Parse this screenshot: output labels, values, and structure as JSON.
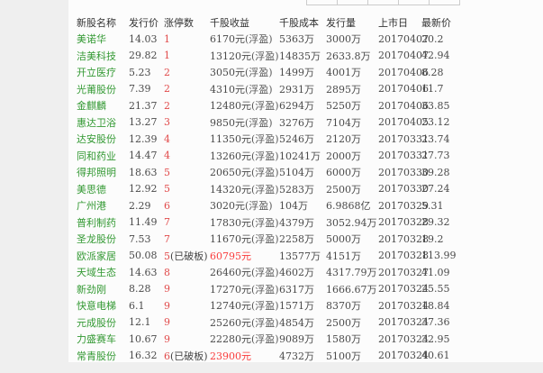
{
  "colors": {
    "stock_name_green": "#339933",
    "limit_up_red": "#e14b4b",
    "broken_board_value_red": "#fa3c3c",
    "text_dark": "#444444",
    "panel_bg": "#fcfcfc",
    "page_bg": "#efefef"
  },
  "table": {
    "columns": [
      {
        "key": "name",
        "label": "新股名称"
      },
      {
        "key": "issue_price",
        "label": "发行价"
      },
      {
        "key": "limit_up",
        "label": "涨停数"
      },
      {
        "key": "income",
        "label": "千股收益"
      },
      {
        "key": "cost",
        "label": "千股成本"
      },
      {
        "key": "volume",
        "label": "发行量"
      },
      {
        "key": "list_date",
        "label": "上市日"
      },
      {
        "key": "latest",
        "label": "最新价"
      }
    ],
    "rows": [
      {
        "name": "美诺华",
        "issue_price": "14.03",
        "limit_up": "1",
        "limit_up_note": "",
        "income": "6170元",
        "income_note": "(浮盈)",
        "income_red": false,
        "cost": "5363万",
        "volume": "3000万",
        "list_date": "20170407",
        "latest": "20.2"
      },
      {
        "name": "洁美科技",
        "issue_price": "29.82",
        "limit_up": "1",
        "limit_up_note": "",
        "income": "13120元",
        "income_note": "(浮盈)",
        "income_red": false,
        "cost": "14835万",
        "volume": "2633.8万",
        "list_date": "20170407",
        "latest": "42.94"
      },
      {
        "name": "开立医疗",
        "issue_price": "5.23",
        "limit_up": "2",
        "limit_up_note": "",
        "income": "3050元",
        "income_note": "(浮盈)",
        "income_red": false,
        "cost": "1499万",
        "volume": "4001万",
        "list_date": "20170406",
        "latest": "8.28"
      },
      {
        "name": "光莆股份",
        "issue_price": "7.39",
        "limit_up": "2",
        "limit_up_note": "",
        "income": "4310元",
        "income_note": "(浮盈)",
        "income_red": false,
        "cost": "2931万",
        "volume": "2895万",
        "list_date": "20170406",
        "latest": "11.7"
      },
      {
        "name": "金麒麟",
        "issue_price": "21.37",
        "limit_up": "2",
        "limit_up_note": "",
        "income": "12480元",
        "income_note": "(浮盈)",
        "income_red": false,
        "cost": "6294万",
        "volume": "5250万",
        "list_date": "20170406",
        "latest": "33.85"
      },
      {
        "name": "惠达卫浴",
        "issue_price": "13.27",
        "limit_up": "3",
        "limit_up_note": "",
        "income": "9850元",
        "income_note": "(浮盈)",
        "income_red": false,
        "cost": "3276万",
        "volume": "7104万",
        "list_date": "20170405",
        "latest": "23.12"
      },
      {
        "name": "达安股份",
        "issue_price": "12.39",
        "limit_up": "4",
        "limit_up_note": "",
        "income": "11350元",
        "income_note": "(浮盈)",
        "income_red": false,
        "cost": "5246万",
        "volume": "2120万",
        "list_date": "20170331",
        "latest": "23.74"
      },
      {
        "name": "同和药业",
        "issue_price": "14.47",
        "limit_up": "4",
        "limit_up_note": "",
        "income": "13260元",
        "income_note": "(浮盈)",
        "income_red": false,
        "cost": "10241万",
        "volume": "2000万",
        "list_date": "20170331",
        "latest": "27.73"
      },
      {
        "name": "得邦照明",
        "issue_price": "18.63",
        "limit_up": "5",
        "limit_up_note": "",
        "income": "20650元",
        "income_note": "(浮盈)",
        "income_red": false,
        "cost": "5104万",
        "volume": "6000万",
        "list_date": "20170330",
        "latest": "39.28"
      },
      {
        "name": "美思德",
        "issue_price": "12.92",
        "limit_up": "5",
        "limit_up_note": "",
        "income": "14320元",
        "income_note": "(浮盈)",
        "income_red": false,
        "cost": "5283万",
        "volume": "2500万",
        "list_date": "20170330",
        "latest": "27.24"
      },
      {
        "name": "广州港",
        "issue_price": "2.29",
        "limit_up": "6",
        "limit_up_note": "",
        "income": "3020元",
        "income_note": "(浮盈)",
        "income_red": false,
        "cost": "104万",
        "volume": "6.9868亿",
        "list_date": "20170329",
        "latest": "5.31"
      },
      {
        "name": "普利制药",
        "issue_price": "11.49",
        "limit_up": "7",
        "limit_up_note": "",
        "income": "17830元",
        "income_note": "(浮盈)",
        "income_red": false,
        "cost": "4379万",
        "volume": "3052.94万",
        "list_date": "20170328",
        "latest": "29.32"
      },
      {
        "name": "圣龙股份",
        "issue_price": "7.53",
        "limit_up": "7",
        "limit_up_note": "",
        "income": "11670元",
        "income_note": "(浮盈)",
        "income_red": false,
        "cost": "2258万",
        "volume": "5000万",
        "list_date": "20170328",
        "latest": "19.2"
      },
      {
        "name": "欧派家居",
        "issue_price": "50.08",
        "limit_up": "5",
        "limit_up_note": "(已破板)",
        "income": "60795元",
        "income_note": "",
        "income_red": true,
        "cost": "13577万",
        "volume": "4151万",
        "list_date": "20170328",
        "latest": "113.99"
      },
      {
        "name": "天域生态",
        "issue_price": "14.63",
        "limit_up": "8",
        "limit_up_note": "",
        "income": "26460元",
        "income_note": "(浮盈)",
        "income_red": false,
        "cost": "4602万",
        "volume": "4317.79万",
        "list_date": "20170327",
        "latest": "41.09"
      },
      {
        "name": "新劲刚",
        "issue_price": "8.28",
        "limit_up": "9",
        "limit_up_note": "",
        "income": "17270元",
        "income_note": "(浮盈)",
        "income_red": false,
        "cost": "6317万",
        "volume": "1666.67万",
        "list_date": "20170324",
        "latest": "25.55"
      },
      {
        "name": "快意电梯",
        "issue_price": "6.1",
        "limit_up": "9",
        "limit_up_note": "",
        "income": "12740元",
        "income_note": "(浮盈)",
        "income_red": false,
        "cost": "1571万",
        "volume": "8370万",
        "list_date": "20170324",
        "latest": "18.84"
      },
      {
        "name": "元成股份",
        "issue_price": "12.1",
        "limit_up": "9",
        "limit_up_note": "",
        "income": "25260元",
        "income_note": "(浮盈)",
        "income_red": false,
        "cost": "4854万",
        "volume": "2500万",
        "list_date": "20170324",
        "latest": "37.36"
      },
      {
        "name": "力盛赛车",
        "issue_price": "10.67",
        "limit_up": "9",
        "limit_up_note": "",
        "income": "22280元",
        "income_note": "(浮盈)",
        "income_red": false,
        "cost": "9089万",
        "volume": "1580万",
        "list_date": "20170324",
        "latest": "32.95"
      },
      {
        "name": "常青股份",
        "issue_price": "16.32",
        "limit_up": "6",
        "limit_up_note": "(已破板)",
        "income": "23900元",
        "income_note": "",
        "income_red": true,
        "cost": "4732万",
        "volume": "5100万",
        "list_date": "20170324",
        "latest": "40.61"
      }
    ]
  }
}
